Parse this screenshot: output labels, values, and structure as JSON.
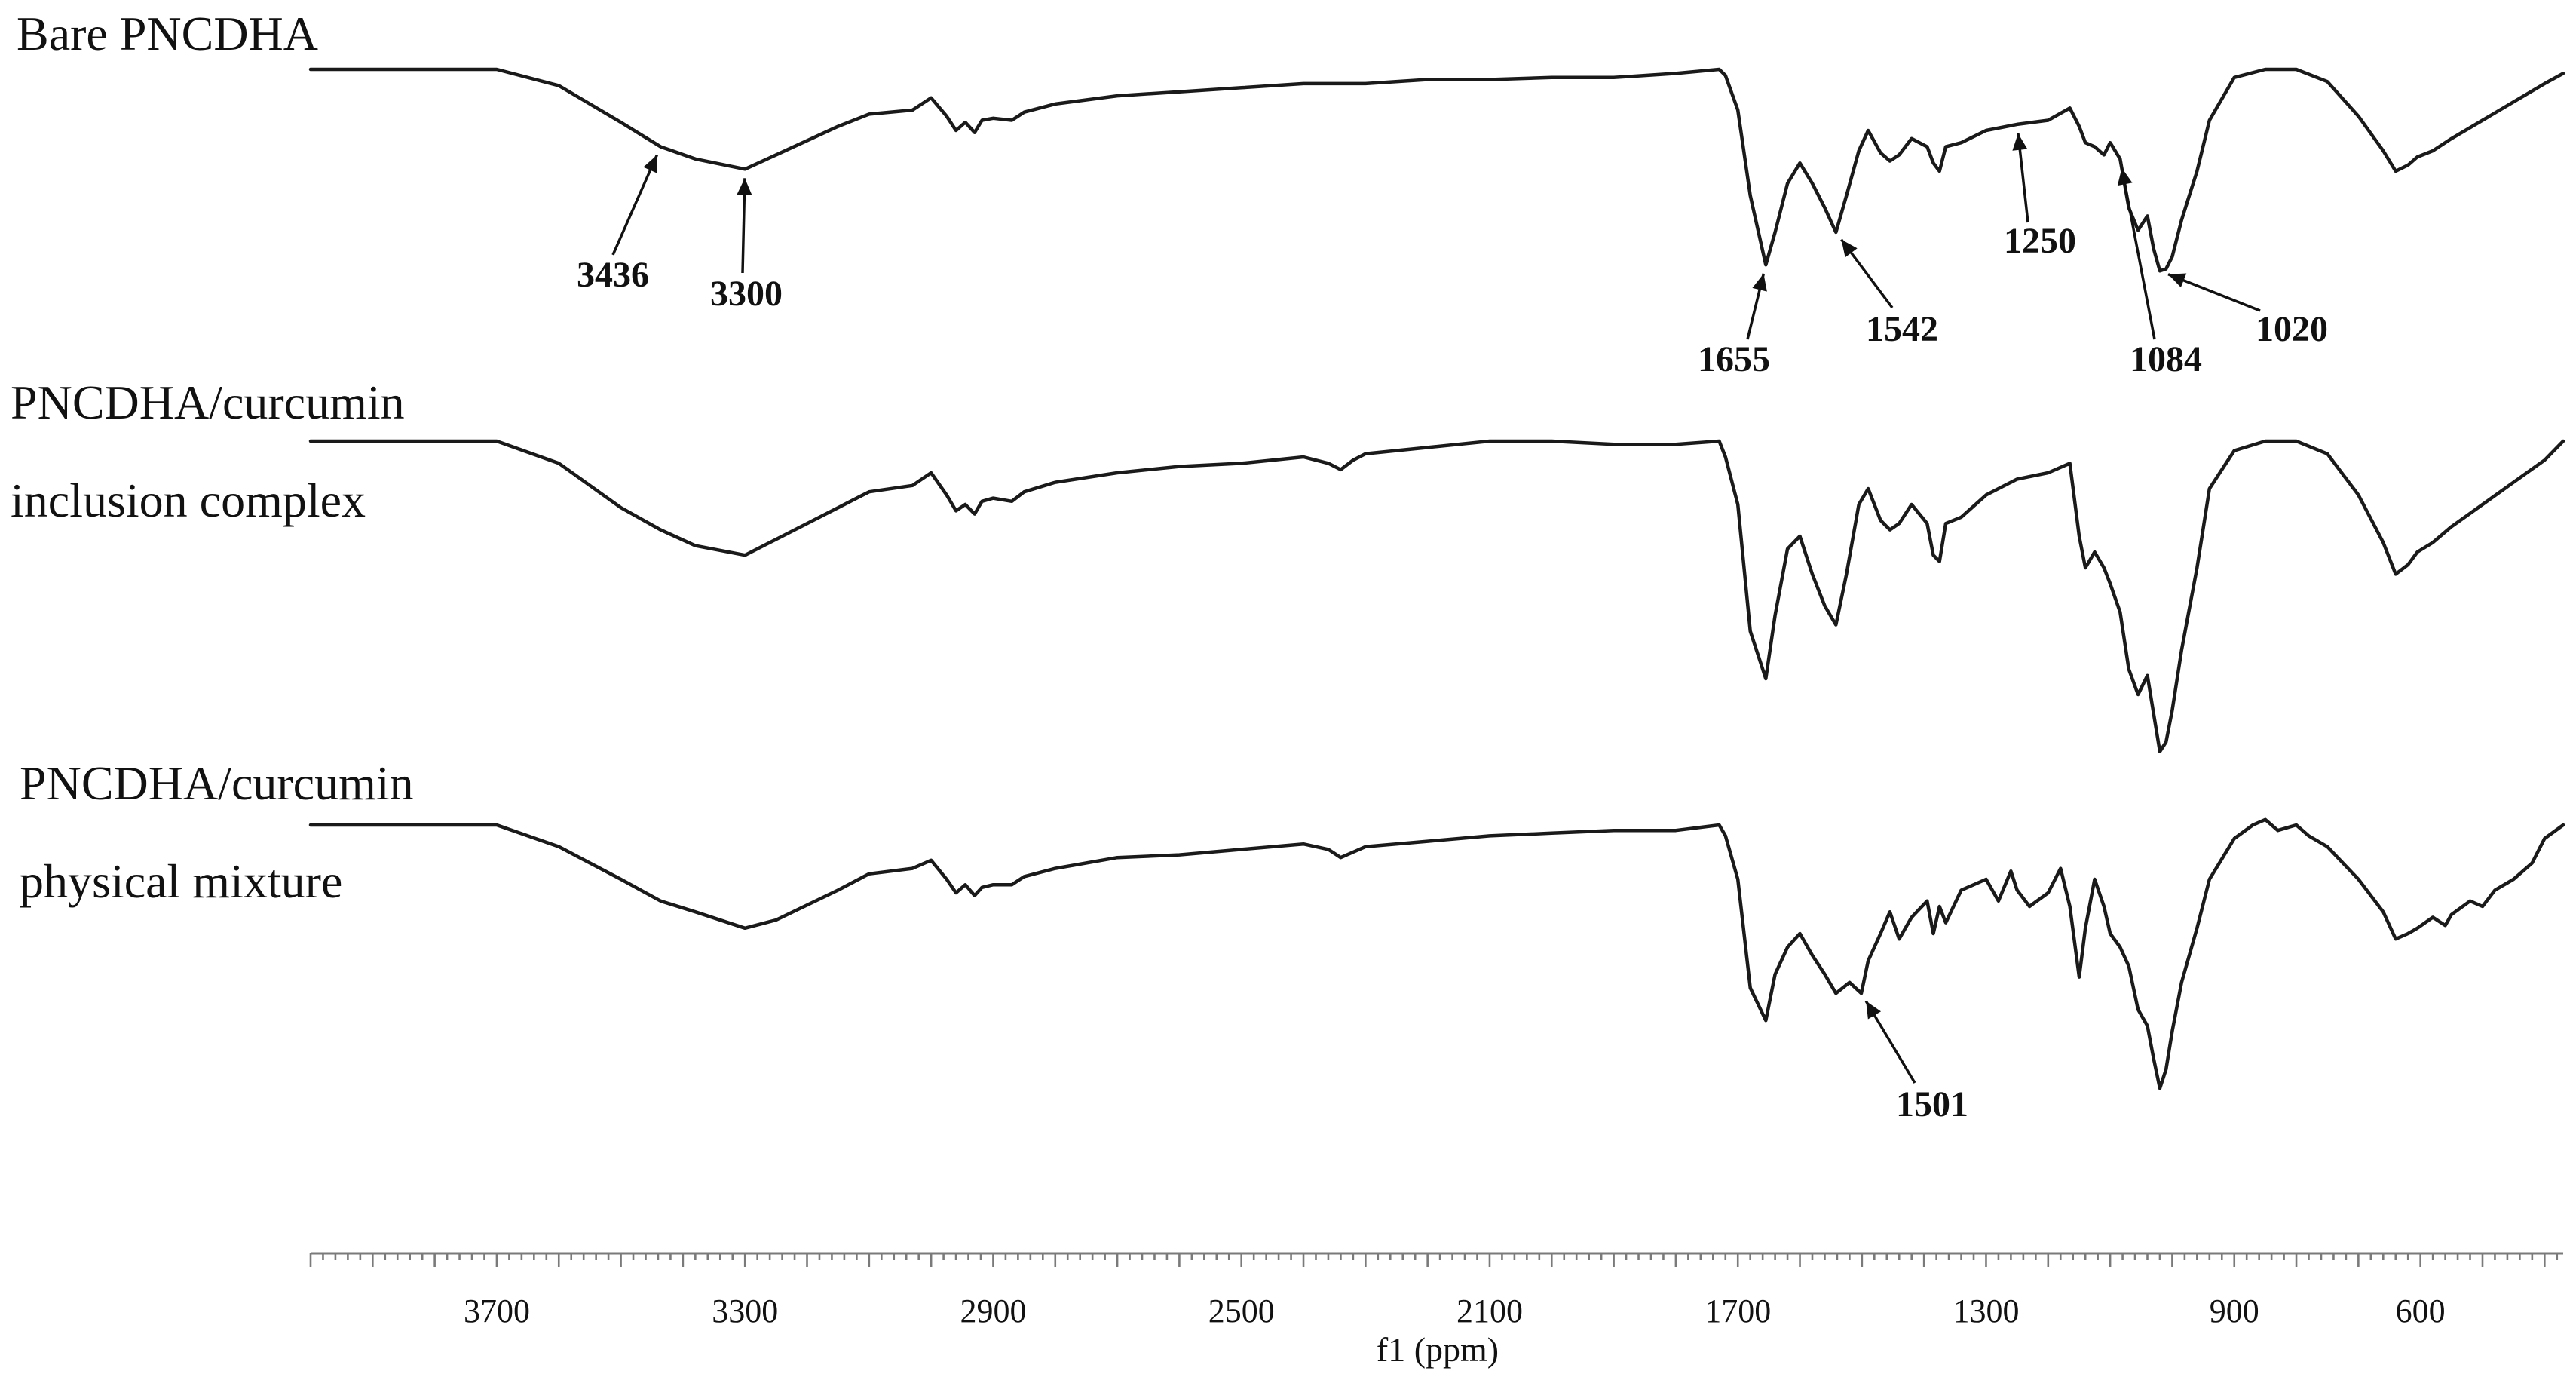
{
  "chart_data": {
    "type": "line",
    "xlabel": "f1 (ppm)",
    "xlim": [
      4000,
      370
    ],
    "x_reversed": true,
    "x_ticks": [
      3700,
      3300,
      2900,
      2500,
      2100,
      1700,
      1300,
      900,
      600
    ],
    "grid": false,
    "series": [
      {
        "name": "Bare PNCDHA",
        "label_lines": [
          "Bare PNCDHA"
        ],
        "x": [
          4000,
          3700,
          3600,
          3500,
          3436,
          3380,
          3300,
          3250,
          3150,
          3100,
          3030,
          3000,
          2975,
          2960,
          2945,
          2930,
          2918,
          2900,
          2870,
          2850,
          2800,
          2700,
          2600,
          2500,
          2400,
          2300,
          2200,
          2100,
          2000,
          1900,
          1800,
          1730,
          1720,
          1700,
          1680,
          1655,
          1640,
          1620,
          1600,
          1580,
          1560,
          1542,
          1525,
          1505,
          1490,
          1470,
          1455,
          1440,
          1420,
          1395,
          1385,
          1375,
          1365,
          1340,
          1300,
          1250,
          1200,
          1165,
          1150,
          1140,
          1125,
          1110,
          1100,
          1084,
          1070,
          1055,
          1040,
          1030,
          1020,
          1010,
          1000,
          985,
          960,
          940,
          900,
          850,
          800,
          750,
          700,
          660,
          640,
          620,
          605,
          580,
          550,
          500,
          450,
          400,
          370
        ],
        "y": [
          0.0,
          0.0,
          0.08,
          0.26,
          0.38,
          0.44,
          0.49,
          0.42,
          0.28,
          0.22,
          0.2,
          0.14,
          0.23,
          0.3,
          0.26,
          0.31,
          0.25,
          0.24,
          0.25,
          0.21,
          0.17,
          0.13,
          0.11,
          0.09,
          0.07,
          0.07,
          0.05,
          0.05,
          0.04,
          0.04,
          0.02,
          0.0,
          0.03,
          0.2,
          0.62,
          0.96,
          0.8,
          0.56,
          0.46,
          0.56,
          0.68,
          0.8,
          0.62,
          0.4,
          0.3,
          0.41,
          0.45,
          0.42,
          0.34,
          0.38,
          0.46,
          0.5,
          0.38,
          0.36,
          0.3,
          0.27,
          0.25,
          0.19,
          0.28,
          0.36,
          0.38,
          0.42,
          0.36,
          0.44,
          0.68,
          0.79,
          0.72,
          0.88,
          0.99,
          0.98,
          0.92,
          0.74,
          0.5,
          0.25,
          0.04,
          0.0,
          0.0,
          0.06,
          0.23,
          0.4,
          0.5,
          0.47,
          0.43,
          0.4,
          0.34,
          0.25,
          0.16,
          0.07,
          0.02
        ]
      },
      {
        "name": "PNCDHA/curcumin inclusion complex",
        "label_lines": [
          "PNCDHA/curcumin",
          "inclusion complex"
        ],
        "x": [
          4000,
          3700,
          3600,
          3500,
          3436,
          3380,
          3300,
          3250,
          3150,
          3100,
          3030,
          3000,
          2975,
          2960,
          2945,
          2930,
          2918,
          2900,
          2870,
          2850,
          2800,
          2700,
          2600,
          2500,
          2400,
          2360,
          2340,
          2320,
          2300,
          2200,
          2100,
          2000,
          1900,
          1800,
          1730,
          1720,
          1700,
          1680,
          1655,
          1640,
          1620,
          1600,
          1580,
          1560,
          1542,
          1525,
          1505,
          1490,
          1470,
          1455,
          1440,
          1420,
          1395,
          1385,
          1375,
          1365,
          1340,
          1300,
          1250,
          1200,
          1165,
          1150,
          1140,
          1125,
          1110,
          1100,
          1084,
          1070,
          1055,
          1040,
          1030,
          1020,
          1010,
          1000,
          985,
          960,
          940,
          900,
          850,
          800,
          750,
          700,
          660,
          640,
          620,
          605,
          580,
          550,
          500,
          450,
          400,
          370
        ],
        "y": [
          0.0,
          0.0,
          0.07,
          0.21,
          0.28,
          0.33,
          0.36,
          0.31,
          0.21,
          0.16,
          0.14,
          0.1,
          0.17,
          0.22,
          0.2,
          0.23,
          0.19,
          0.18,
          0.19,
          0.16,
          0.13,
          0.1,
          0.08,
          0.07,
          0.05,
          0.07,
          0.09,
          0.06,
          0.04,
          0.02,
          0.0,
          0.0,
          0.01,
          0.01,
          0.0,
          0.05,
          0.2,
          0.6,
          0.75,
          0.55,
          0.34,
          0.3,
          0.42,
          0.52,
          0.58,
          0.42,
          0.2,
          0.15,
          0.25,
          0.28,
          0.26,
          0.2,
          0.26,
          0.36,
          0.38,
          0.26,
          0.24,
          0.17,
          0.12,
          0.1,
          0.07,
          0.3,
          0.4,
          0.35,
          0.4,
          0.45,
          0.54,
          0.72,
          0.8,
          0.74,
          0.86,
          0.98,
          0.95,
          0.85,
          0.66,
          0.4,
          0.15,
          0.03,
          0.0,
          0.0,
          0.04,
          0.17,
          0.32,
          0.42,
          0.39,
          0.35,
          0.32,
          0.27,
          0.2,
          0.13,
          0.06,
          0.0
        ]
      },
      {
        "name": "PNCDHA/curcumin physical mixture",
        "label_lines": [
          "PNCDHA/curcumin",
          "physical mixture"
        ],
        "x": [
          4000,
          3700,
          3600,
          3500,
          3436,
          3380,
          3300,
          3250,
          3150,
          3100,
          3030,
          3000,
          2975,
          2960,
          2945,
          2930,
          2918,
          2900,
          2870,
          2850,
          2800,
          2700,
          2600,
          2500,
          2400,
          2360,
          2340,
          2320,
          2300,
          2200,
          2100,
          2000,
          1900,
          1800,
          1730,
          1720,
          1700,
          1680,
          1655,
          1640,
          1620,
          1600,
          1580,
          1560,
          1542,
          1520,
          1501,
          1490,
          1470,
          1455,
          1440,
          1420,
          1395,
          1385,
          1375,
          1365,
          1340,
          1300,
          1280,
          1260,
          1250,
          1230,
          1200,
          1180,
          1165,
          1150,
          1140,
          1125,
          1110,
          1100,
          1084,
          1070,
          1055,
          1040,
          1030,
          1020,
          1010,
          1000,
          985,
          960,
          940,
          900,
          870,
          850,
          830,
          800,
          780,
          750,
          700,
          660,
          640,
          620,
          605,
          580,
          560,
          550,
          520,
          500,
          480,
          450,
          420,
          400,
          370
        ],
        "y": [
          0.0,
          0.0,
          0.08,
          0.2,
          0.28,
          0.32,
          0.38,
          0.35,
          0.24,
          0.18,
          0.16,
          0.13,
          0.2,
          0.25,
          0.22,
          0.26,
          0.23,
          0.22,
          0.22,
          0.19,
          0.16,
          0.12,
          0.11,
          0.09,
          0.07,
          0.09,
          0.12,
          0.1,
          0.08,
          0.06,
          0.04,
          0.03,
          0.02,
          0.02,
          0.0,
          0.04,
          0.2,
          0.6,
          0.72,
          0.55,
          0.45,
          0.4,
          0.48,
          0.55,
          0.62,
          0.58,
          0.62,
          0.5,
          0.4,
          0.32,
          0.42,
          0.34,
          0.28,
          0.4,
          0.3,
          0.36,
          0.24,
          0.2,
          0.28,
          0.17,
          0.24,
          0.3,
          0.25,
          0.16,
          0.3,
          0.56,
          0.38,
          0.2,
          0.3,
          0.4,
          0.45,
          0.52,
          0.68,
          0.74,
          0.86,
          0.97,
          0.9,
          0.76,
          0.58,
          0.38,
          0.2,
          0.05,
          0.0,
          -0.02,
          0.02,
          0.0,
          0.04,
          0.08,
          0.2,
          0.32,
          0.42,
          0.4,
          0.38,
          0.34,
          0.37,
          0.33,
          0.28,
          0.3,
          0.24,
          0.2,
          0.14,
          0.05,
          0.0
        ]
      }
    ],
    "annotations": [
      {
        "series": 0,
        "x": 3436,
        "text": "3436"
      },
      {
        "series": 0,
        "x": 3300,
        "text": "3300"
      },
      {
        "series": 0,
        "x": 1655,
        "text": "1655"
      },
      {
        "series": 0,
        "x": 1542,
        "text": "1542"
      },
      {
        "series": 0,
        "x": 1250,
        "text": "1250"
      },
      {
        "series": 0,
        "x": 1084,
        "text": "1084"
      },
      {
        "series": 0,
        "x": 1020,
        "text": "1020"
      },
      {
        "series": 2,
        "x": 1501,
        "text": "1501"
      }
    ]
  }
}
